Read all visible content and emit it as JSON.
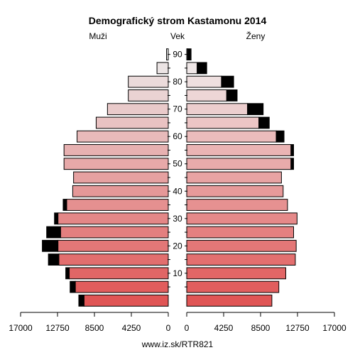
{
  "chart_data": {
    "type": "bar",
    "title": "Demografický strom Kastamonu 2014",
    "left_label": "Muži",
    "center_label": "Vek",
    "right_label": "Ženy",
    "footer": "www.iz.sk/RTR821",
    "x_range": [
      0,
      17000
    ],
    "x_ticks": [
      "17000",
      "12750",
      "8500",
      "4250",
      "0",
      "0",
      "4250",
      "8500",
      "12750",
      "17000"
    ],
    "age_ticks": [
      "10",
      "20",
      "30",
      "40",
      "50",
      "60",
      "70",
      "80",
      "90"
    ],
    "age_groups": [
      "0-4",
      "5-9",
      "10-14",
      "15-19",
      "20-24",
      "25-29",
      "30-34",
      "35-39",
      "40-44",
      "45-49",
      "50-54",
      "55-59",
      "60-64",
      "65-69",
      "70-74",
      "75-79",
      "80-84",
      "85-89",
      "90+"
    ],
    "series": [
      {
        "name": "Muži",
        "values": [
          9700,
          10700,
          11400,
          12600,
          12700,
          12400,
          12700,
          11700,
          11000,
          10900,
          12000,
          12000,
          10500,
          8300,
          7000,
          4600,
          4600,
          1300,
          200
        ],
        "excess": [
          600,
          600,
          400,
          1200,
          1800,
          1600,
          400,
          400,
          0,
          0,
          0,
          0,
          0,
          0,
          0,
          0,
          0,
          0,
          0
        ]
      },
      {
        "name": "Ženy",
        "values": [
          9800,
          10600,
          11400,
          12500,
          12600,
          12300,
          12700,
          11600,
          11100,
          10900,
          12000,
          12000,
          10300,
          8300,
          7000,
          4600,
          4000,
          1200,
          100
        ],
        "excess": [
          0,
          0,
          0,
          0,
          0,
          0,
          0,
          0,
          0,
          0,
          300,
          300,
          900,
          1200,
          1800,
          1200,
          1400,
          1100,
          400
        ]
      }
    ],
    "colors": {
      "male_young": "#e05555",
      "male_old": "#ececec",
      "female_young": "#e05555",
      "female_old": "#f0f0f0",
      "excess": "#000000",
      "outline": "#000000"
    }
  }
}
